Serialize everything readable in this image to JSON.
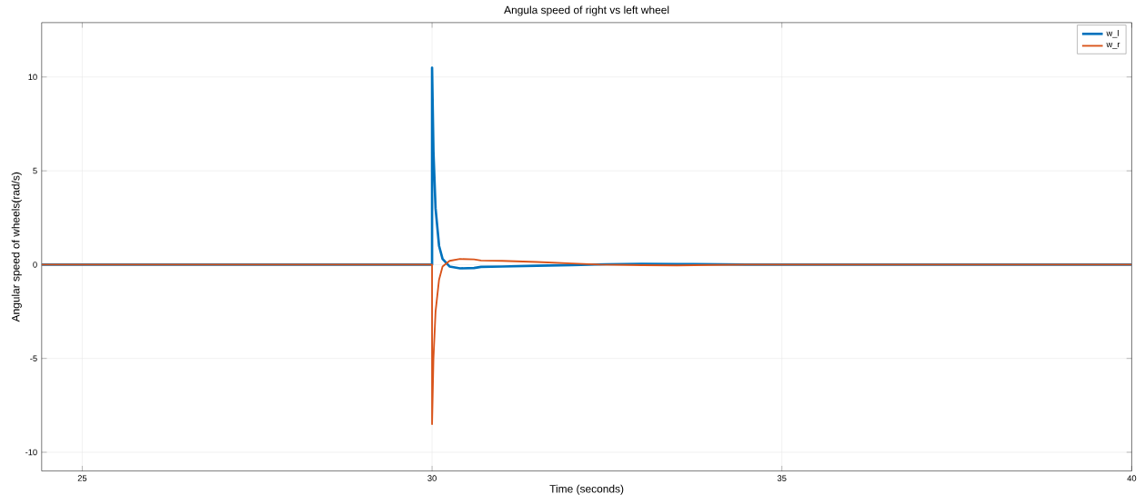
{
  "chart_data": {
    "type": "line",
    "title": "Angula speed of right vs left wheel",
    "xlabel": "Time (seconds)",
    "ylabel": "Angular speed of wheels(rad/s)",
    "xlim": [
      24.42,
      40
    ],
    "ylim": [
      -11,
      12.9
    ],
    "xticks": [
      25,
      30,
      35,
      40
    ],
    "yticks": [
      -10,
      -5,
      0,
      5,
      10
    ],
    "grid": true,
    "legend": "top right",
    "line_style": "solid",
    "marker": "none",
    "series": [
      {
        "name": "w_l",
        "color": "#0072bd",
        "x": [
          24.42,
          30.0,
          30.0,
          30.02,
          30.05,
          30.1,
          30.15,
          30.25,
          30.4,
          30.6,
          30.7,
          31.0,
          31.5,
          32.0,
          32.5,
          33.0,
          33.5,
          34.5,
          40
        ],
        "values": [
          0,
          0,
          10.5,
          6,
          3,
          1,
          0.3,
          -0.1,
          -0.2,
          -0.18,
          -0.12,
          -0.1,
          -0.06,
          -0.02,
          0.02,
          0.04,
          0.03,
          0,
          0
        ]
      },
      {
        "name": "w_r",
        "color": "#d95319",
        "x": [
          24.42,
          30.0,
          30.0,
          30.02,
          30.05,
          30.1,
          30.15,
          30.25,
          30.4,
          30.6,
          30.7,
          31.0,
          31.5,
          32.0,
          32.4,
          33.0,
          33.5,
          34.5,
          40
        ],
        "values": [
          0,
          0,
          -8.5,
          -5,
          -2.5,
          -0.8,
          -0.1,
          0.2,
          0.3,
          0.28,
          0.22,
          0.2,
          0.14,
          0.06,
          0,
          -0.03,
          -0.04,
          0,
          0
        ]
      }
    ]
  }
}
